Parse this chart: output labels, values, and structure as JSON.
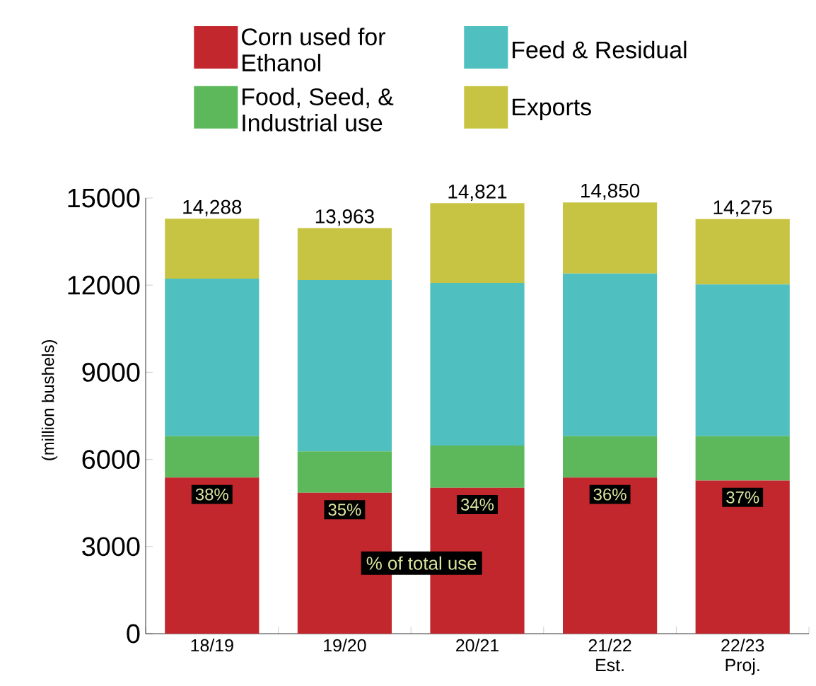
{
  "chart_data": {
    "type": "bar",
    "stacked": true,
    "categories": [
      "18/19",
      "19/20",
      "20/21",
      "21/22 Est.",
      "22/23 Proj."
    ],
    "series": [
      {
        "name": "Corn used for Ethanol",
        "color": "#c1272d",
        "values": [
          5375,
          4850,
          5025,
          5375,
          5275
        ]
      },
      {
        "name": "Food, Seed, & Industrial use",
        "color": "#5cb85a",
        "values": [
          1425,
          1425,
          1450,
          1425,
          1525
        ]
      },
      {
        "name": "Feed & Residual",
        "color": "#4fbfbf",
        "values": [
          5425,
          5900,
          5600,
          5600,
          5225
        ]
      },
      {
        "name": "Exports",
        "color": "#c8c443",
        "values": [
          2063,
          1788,
          2746,
          2450,
          2250
        ]
      }
    ],
    "totals": [
      "14,288",
      "13,963",
      "14,821",
      "14,850",
      "14,275"
    ],
    "ylabel": "(million bushels)",
    "ylim": [
      0,
      15000
    ],
    "yticks": [
      0,
      3000,
      6000,
      9000,
      12000,
      15000
    ],
    "annotations": [
      {
        "text": "38%",
        "x": "18/19",
        "y": 5375
      },
      {
        "text": "35%",
        "x": "19/20",
        "y": 4850
      },
      {
        "text": "34%",
        "x": "20/21",
        "y": 5025
      },
      {
        "text": "36%",
        "x": "21/22 Est.",
        "y": 5375
      },
      {
        "text": "37%",
        "x": "22/23 Proj.",
        "y": 5275
      },
      "% of total use"
    ],
    "legend": "top"
  }
}
